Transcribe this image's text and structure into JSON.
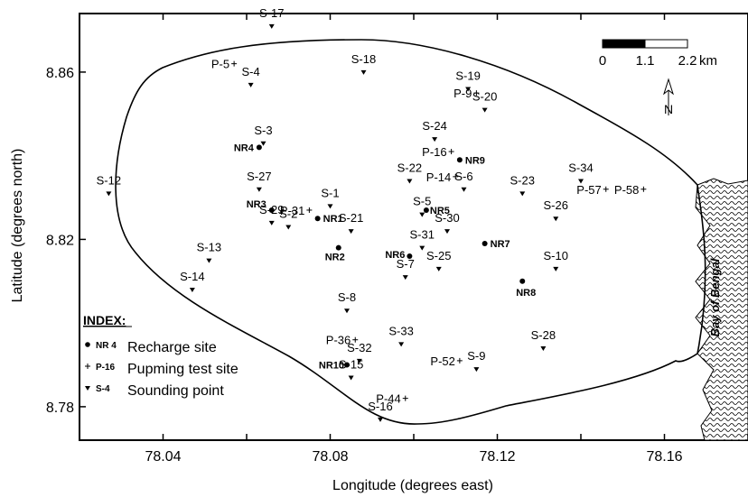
{
  "map": {
    "x_axis_title": "Longitude (degrees east)",
    "y_axis_title": "Latitude (degrees north)",
    "x_ticks": [
      {
        "value": 78.04,
        "label": "78.04"
      },
      {
        "value": 78.08,
        "label": "78.08"
      },
      {
        "value": 78.12,
        "label": "78.12"
      },
      {
        "value": 78.16,
        "label": "78.16"
      }
    ],
    "y_ticks": [
      {
        "value": 8.86,
        "label": "8.86"
      },
      {
        "value": 8.82,
        "label": "8.82"
      },
      {
        "value": 8.78,
        "label": "8.78"
      }
    ],
    "x_range": [
      78.02,
      78.18
    ],
    "y_range": [
      8.772,
      8.874
    ],
    "bay_label": "Bay of Bengal",
    "north_label": "N",
    "scale_bar": {
      "labels": [
        "0",
        "1.1",
        "2.2"
      ],
      "unit": "km"
    }
  },
  "legend": {
    "title": "INDEX:",
    "items": [
      {
        "symbol": "dot",
        "key": "NR 4",
        "label": "Recharge site"
      },
      {
        "symbol": "plus",
        "key": "P-16",
        "label": "Pupming test site"
      },
      {
        "symbol": "tri",
        "key": "S-4",
        "label": "Sounding point"
      }
    ]
  },
  "chart_data": {
    "type": "scatter",
    "xlabel": "Longitude (degrees east)",
    "ylabel": "Latitude (degrees north)",
    "xlim": [
      78.02,
      78.18
    ],
    "ylim": [
      8.772,
      8.874
    ],
    "series": [
      {
        "name": "Recharge site",
        "symbol": "dot",
        "points": [
          {
            "label": "NR1",
            "x": 78.077,
            "y": 8.825
          },
          {
            "label": "NR2",
            "x": 78.082,
            "y": 8.818
          },
          {
            "label": "NR3",
            "x": 78.066,
            "y": 8.827
          },
          {
            "label": "NR4",
            "x": 78.063,
            "y": 8.842
          },
          {
            "label": "NR5",
            "x": 78.103,
            "y": 8.827
          },
          {
            "label": "NR6",
            "x": 78.099,
            "y": 8.816
          },
          {
            "label": "NR7",
            "x": 78.117,
            "y": 8.819
          },
          {
            "label": "NR8",
            "x": 78.126,
            "y": 8.81
          },
          {
            "label": "NR9",
            "x": 78.111,
            "y": 8.839
          },
          {
            "label": "NR10",
            "x": 78.084,
            "y": 8.79
          }
        ]
      },
      {
        "name": "Pupming test site",
        "symbol": "plus",
        "points": [
          {
            "label": "P-5",
            "x": 78.057,
            "y": 8.862
          },
          {
            "label": "P-9",
            "x": 78.115,
            "y": 8.855
          },
          {
            "label": "P-16",
            "x": 78.109,
            "y": 8.841
          },
          {
            "label": "P-14",
            "x": 78.11,
            "y": 8.835
          },
          {
            "label": "P-31",
            "x": 78.075,
            "y": 8.827
          },
          {
            "label": "P-57",
            "x": 78.146,
            "y": 8.832
          },
          {
            "label": "P-58",
            "x": 78.155,
            "y": 8.832
          },
          {
            "label": "P-36",
            "x": 78.086,
            "y": 8.796
          },
          {
            "label": "P-52",
            "x": 78.111,
            "y": 8.791
          },
          {
            "label": "P-44",
            "x": 78.098,
            "y": 8.782
          }
        ]
      },
      {
        "name": "Sounding point",
        "symbol": "tri",
        "points": [
          {
            "label": "S-17",
            "x": 78.066,
            "y": 8.871
          },
          {
            "label": "S-4",
            "x": 78.061,
            "y": 8.857
          },
          {
            "label": "S-18",
            "x": 78.088,
            "y": 8.86
          },
          {
            "label": "S-19",
            "x": 78.113,
            "y": 8.856
          },
          {
            "label": "S-20",
            "x": 78.117,
            "y": 8.851
          },
          {
            "label": "S-24",
            "x": 78.105,
            "y": 8.844
          },
          {
            "label": "S-3",
            "x": 78.064,
            "y": 8.843
          },
          {
            "label": "S-12",
            "x": 78.027,
            "y": 8.831
          },
          {
            "label": "S-27",
            "x": 78.063,
            "y": 8.832
          },
          {
            "label": "S-1",
            "x": 78.08,
            "y": 8.828
          },
          {
            "label": "S-29",
            "x": 78.066,
            "y": 8.824
          },
          {
            "label": "S-2",
            "x": 78.07,
            "y": 8.823
          },
          {
            "label": "S-21",
            "x": 78.085,
            "y": 8.822
          },
          {
            "label": "S-22",
            "x": 78.099,
            "y": 8.834
          },
          {
            "label": "S-6",
            "x": 78.112,
            "y": 8.832
          },
          {
            "label": "S-23",
            "x": 78.126,
            "y": 8.831
          },
          {
            "label": "S-34",
            "x": 78.14,
            "y": 8.834
          },
          {
            "label": "S-5",
            "x": 78.102,
            "y": 8.826
          },
          {
            "label": "S-26",
            "x": 78.134,
            "y": 8.825
          },
          {
            "label": "S-30",
            "x": 78.108,
            "y": 8.822
          },
          {
            "label": "S-31",
            "x": 78.102,
            "y": 8.818
          },
          {
            "label": "S-13",
            "x": 78.051,
            "y": 8.815
          },
          {
            "label": "S-7",
            "x": 78.098,
            "y": 8.811
          },
          {
            "label": "S-25",
            "x": 78.106,
            "y": 8.813
          },
          {
            "label": "S-10",
            "x": 78.134,
            "y": 8.813
          },
          {
            "label": "S-14",
            "x": 78.047,
            "y": 8.808
          },
          {
            "label": "S-8",
            "x": 78.084,
            "y": 8.803
          },
          {
            "label": "S-33",
            "x": 78.097,
            "y": 8.795
          },
          {
            "label": "S-32",
            "x": 78.087,
            "y": 8.791
          },
          {
            "label": "S-28",
            "x": 78.131,
            "y": 8.794
          },
          {
            "label": "S-15",
            "x": 78.085,
            "y": 8.787
          },
          {
            "label": "S-9",
            "x": 78.115,
            "y": 8.789
          },
          {
            "label": "S-16",
            "x": 78.092,
            "y": 8.777
          }
        ]
      }
    ]
  }
}
